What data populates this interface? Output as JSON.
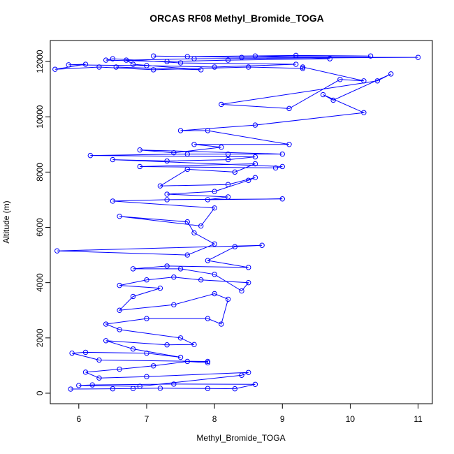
{
  "chart_data": {
    "type": "line",
    "title": "ORCAS RF08 Methyl_Bromide_TOGA",
    "x_label": "Methyl_Bromide_TOGA",
    "y_label": "Altitude (m)",
    "color": "#0000ff",
    "markers": true,
    "x": [
      5.88,
      6.5,
      6.8,
      7.2,
      7.9,
      8.3,
      8.6,
      7.4,
      6.2,
      6.0,
      6.9,
      8.4,
      8.5,
      7.0,
      6.3,
      6.1,
      6.6,
      7.1,
      7.6,
      7.9,
      7.9,
      6.3,
      5.9,
      6.1,
      7.0,
      7.5,
      6.8,
      6.4,
      7.3,
      7.7,
      7.5,
      6.6,
      6.4,
      7.0,
      7.9,
      8.1,
      8.2,
      8.0,
      7.4,
      6.6,
      6.8,
      7.2,
      6.6,
      7.0,
      7.4,
      7.8,
      8.5,
      8.4,
      8.0,
      7.5,
      6.8,
      7.3,
      8.5,
      7.9,
      8.3,
      8.7,
      5.68,
      7.6,
      8.0,
      7.7,
      7.6,
      6.6,
      7.8,
      8.0,
      6.5,
      7.3,
      9.0,
      7.9,
      8.2,
      7.3,
      8.0,
      8.5,
      8.6,
      8.2,
      7.2,
      7.6,
      8.3,
      8.6,
      6.9,
      8.9,
      9.0,
      6.5,
      7.3,
      8.2,
      8.6,
      6.17,
      7.6,
      8.2,
      9.0,
      6.9,
      7.4,
      8.1,
      7.7,
      9.1,
      7.9,
      7.5,
      8.6,
      10.2,
      9.6,
      9.75,
      10.6,
      10.4,
      8.1,
      9.1,
      9.85,
      10.2,
      9.3,
      9.3,
      8.5,
      7.1,
      6.3,
      5.65,
      6.1,
      5.85,
      7.0,
      8.0,
      9.2,
      7.5,
      6.5,
      6.4,
      7.3,
      8.2,
      9.7,
      8.6,
      10.3,
      9.2,
      7.6,
      7.1,
      8.4,
      11.0,
      7.7,
      6.7,
      6.8,
      7.8,
      6.55
    ],
    "values": [
      150,
      160,
      170,
      180,
      170,
      160,
      320,
      330,
      300,
      280,
      250,
      650,
      750,
      600,
      550,
      760,
      870,
      990,
      1150,
      1100,
      1150,
      1200,
      1450,
      1480,
      1450,
      1300,
      1600,
      1900,
      1750,
      1760,
      2000,
      2300,
      2500,
      2700,
      2700,
      2500,
      3400,
      3600,
      3200,
      3000,
      3500,
      3800,
      3900,
      4100,
      4200,
      4100,
      4000,
      3700,
      4300,
      4500,
      4500,
      4600,
      4550,
      4800,
      5300,
      5350,
      5150,
      5000,
      5400,
      5800,
      6200,
      6400,
      6050,
      6700,
      6950,
      7000,
      7030,
      7000,
      7100,
      7200,
      7300,
      7700,
      7800,
      7550,
      7500,
      8100,
      8000,
      8300,
      8200,
      8150,
      8200,
      8450,
      8400,
      8450,
      8550,
      8600,
      8650,
      8650,
      8650,
      8800,
      8700,
      8900,
      9000,
      9000,
      9500,
      9500,
      9700,
      10150,
      10800,
      10600,
      11550,
      11300,
      10450,
      10300,
      11350,
      11300,
      11800,
      11750,
      11800,
      11700,
      11800,
      11720,
      11900,
      11880,
      11850,
      11800,
      11900,
      11950,
      12100,
      12050,
      12000,
      12050,
      12100,
      12200,
      12200,
      12220,
      12180,
      12200,
      12150,
      12150,
      12100,
      12050,
      11900,
      11700,
      11800
    ],
    "xlim": [
      5.58,
      11.21
    ],
    "ylim": [
      -380,
      12760
    ],
    "xticks": [
      6,
      7,
      8,
      9,
      10,
      11
    ],
    "yticks": [
      0,
      2000,
      4000,
      6000,
      8000,
      10000,
      12000
    ]
  }
}
